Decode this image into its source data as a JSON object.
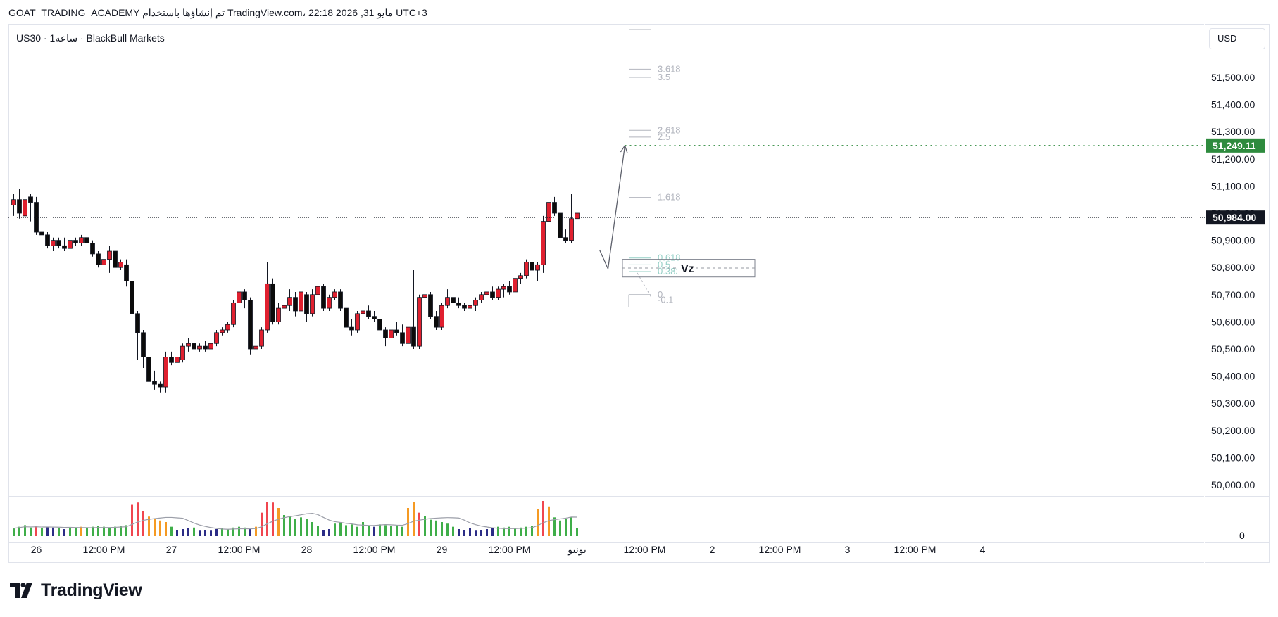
{
  "header": {
    "snapshot_line": "GOAT_TRADING_ACADEMY تم إنشاؤها باستخدام TradingView.com، 22:18 2026 ,31 مايو UTC+3",
    "symbol_line": "US30 · 1ساعة · BlackBull Markets",
    "currency": "USD"
  },
  "brand": {
    "name": "TradingView",
    "logo_icon": "tradingview-logo-icon"
  },
  "colors": {
    "up_candle": "#e0202f",
    "down_candle": "#0b0b0b",
    "target_green": "#2e8b3e",
    "current_price_bg": "#131722",
    "vol_green": "#3fae49",
    "vol_red": "#f0464f",
    "vol_orange": "#f59a23",
    "vol_navy": "#2b2c86",
    "vol_ma": "#9b9ea8",
    "fib_gray": "#b2b5be",
    "fib_teal": "#94cfc6"
  },
  "chart_data": {
    "type": "candlestick",
    "title": "",
    "price_axis": {
      "range": [
        49950,
        51650
      ],
      "ticks": [
        50000,
        50100,
        50200,
        50300,
        50400,
        50500,
        50600,
        50700,
        50800,
        50900,
        51000,
        51100,
        51200,
        51300,
        51400,
        51500
      ],
      "tick_labels": [
        "50,000.00",
        "50,100.00",
        "50,200.00",
        "50,300.00",
        "50,400.00",
        "50,500.00",
        "50,600.00",
        "50,700.00",
        "50,800.00",
        "50,900.00",
        "51,000.00",
        "51,100.00",
        "51,200.00",
        "51,300.00",
        "51,400.00",
        "51,500.00"
      ]
    },
    "time_axis": {
      "labels": [
        "26",
        "12:00 PM",
        "27",
        "12:00 PM",
        "28",
        "12:00 PM",
        "29",
        "12:00 PM",
        "يونيو",
        "12:00 PM",
        "2",
        "12:00 PM",
        "3",
        "12:00 PM",
        "4"
      ],
      "label_bars": [
        4,
        16,
        28,
        40,
        52,
        64,
        76,
        88,
        100,
        112,
        124,
        136,
        148,
        160,
        172
      ]
    },
    "candles": [
      [
        51030,
        51070,
        50990,
        51050
      ],
      [
        51050,
        51090,
        50980,
        51000
      ],
      [
        50990,
        51130,
        50980,
        51050
      ],
      [
        51060,
        51070,
        50970,
        51040
      ],
      [
        51040,
        51060,
        50920,
        50930
      ],
      [
        50930,
        50940,
        50900,
        50920
      ],
      [
        50920,
        50930,
        50870,
        50880
      ],
      [
        50880,
        50910,
        50860,
        50900
      ],
      [
        50900,
        50910,
        50870,
        50880
      ],
      [
        50880,
        50910,
        50860,
        50870
      ],
      [
        50870,
        50920,
        50850,
        50900
      ],
      [
        50900,
        50910,
        50880,
        50890
      ],
      [
        50890,
        50920,
        50880,
        50910
      ],
      [
        50910,
        50950,
        50880,
        50890
      ],
      [
        50890,
        50900,
        50840,
        50850
      ],
      [
        50850,
        50860,
        50800,
        50810
      ],
      [
        50810,
        50840,
        50780,
        50830
      ],
      [
        50830,
        50880,
        50780,
        50860
      ],
      [
        50860,
        50880,
        50770,
        50800
      ],
      [
        50800,
        50830,
        50790,
        50820
      ],
      [
        50810,
        50830,
        50730,
        50750
      ],
      [
        50750,
        50760,
        50610,
        50630
      ],
      [
        50630,
        50640,
        50460,
        50560
      ],
      [
        50560,
        50570,
        50430,
        50470
      ],
      [
        50470,
        50480,
        50370,
        50380
      ],
      [
        50380,
        50420,
        50350,
        50370
      ],
      [
        50370,
        50380,
        50340,
        50360
      ],
      [
        50360,
        50490,
        50340,
        50470
      ],
      [
        50470,
        50490,
        50440,
        50450
      ],
      [
        50450,
        50490,
        50420,
        50470
      ],
      [
        50460,
        50520,
        50450,
        50510
      ],
      [
        50510,
        50540,
        50490,
        50520
      ],
      [
        50520,
        50530,
        50490,
        50500
      ],
      [
        50500,
        50520,
        50490,
        50510
      ],
      [
        50510,
        50530,
        50490,
        50500
      ],
      [
        50500,
        50530,
        50490,
        50520
      ],
      [
        50520,
        50570,
        50510,
        50560
      ],
      [
        50560,
        50580,
        50550,
        50570
      ],
      [
        50570,
        50600,
        50560,
        50590
      ],
      [
        50590,
        50680,
        50580,
        50670
      ],
      [
        50670,
        50720,
        50660,
        50710
      ],
      [
        50710,
        50720,
        50650,
        50680
      ],
      [
        50680,
        50690,
        50480,
        50500
      ],
      [
        50500,
        50530,
        50430,
        50510
      ],
      [
        50510,
        50580,
        50500,
        50570
      ],
      [
        50570,
        50820,
        50560,
        50740
      ],
      [
        50740,
        50760,
        50590,
        50600
      ],
      [
        50600,
        50670,
        50590,
        50650
      ],
      [
        50650,
        50670,
        50620,
        50660
      ],
      [
        50660,
        50720,
        50640,
        50690
      ],
      [
        50690,
        50710,
        50620,
        50640
      ],
      [
        50640,
        50730,
        50630,
        50710
      ],
      [
        50700,
        50710,
        50600,
        50630
      ],
      [
        50630,
        50720,
        50620,
        50700
      ],
      [
        50700,
        50740,
        50690,
        50730
      ],
      [
        50730,
        50740,
        50640,
        50650
      ],
      [
        50650,
        50700,
        50640,
        50690
      ],
      [
        50690,
        50720,
        50680,
        50710
      ],
      [
        50710,
        50720,
        50640,
        50650
      ],
      [
        50650,
        50660,
        50570,
        50580
      ],
      [
        50580,
        50610,
        50550,
        50570
      ],
      [
        50570,
        50640,
        50560,
        50630
      ],
      [
        50630,
        50650,
        50620,
        50640
      ],
      [
        50640,
        50660,
        50610,
        50620
      ],
      [
        50620,
        50640,
        50600,
        50610
      ],
      [
        50610,
        50620,
        50560,
        50570
      ],
      [
        50570,
        50580,
        50510,
        50540
      ],
      [
        50540,
        50580,
        50520,
        50570
      ],
      [
        50570,
        50600,
        50550,
        50560
      ],
      [
        50560,
        50590,
        50510,
        50520
      ],
      [
        50520,
        50600,
        50310,
        50580
      ],
      [
        50580,
        50790,
        50500,
        50510
      ],
      [
        50510,
        50700,
        50500,
        50690
      ],
      [
        50690,
        50710,
        50670,
        50700
      ],
      [
        50700,
        50710,
        50610,
        50620
      ],
      [
        50620,
        50640,
        50570,
        50580
      ],
      [
        50580,
        50670,
        50570,
        50660
      ],
      [
        50660,
        50720,
        50650,
        50690
      ],
      [
        50690,
        50700,
        50660,
        50670
      ],
      [
        50670,
        50690,
        50650,
        50660
      ],
      [
        50660,
        50670,
        50640,
        50650
      ],
      [
        50650,
        50670,
        50630,
        50660
      ],
      [
        50660,
        50690,
        50640,
        50680
      ],
      [
        50680,
        50710,
        50670,
        50700
      ],
      [
        50700,
        50720,
        50690,
        50710
      ],
      [
        50710,
        50730,
        50680,
        50690
      ],
      [
        50690,
        50730,
        50680,
        50720
      ],
      [
        50720,
        50740,
        50690,
        50730
      ],
      [
        50730,
        50750,
        50700,
        50710
      ],
      [
        50710,
        50780,
        50700,
        50760
      ],
      [
        50760,
        50780,
        50740,
        50770
      ],
      [
        50770,
        50830,
        50760,
        50820
      ],
      [
        50820,
        50830,
        50780,
        50790
      ],
      [
        50790,
        50820,
        50750,
        50810
      ],
      [
        50810,
        50990,
        50780,
        50970
      ],
      [
        50970,
        51060,
        50950,
        51040
      ],
      [
        51040,
        51060,
        50990,
        51000
      ],
      [
        51000,
        51010,
        50900,
        50910
      ],
      [
        50910,
        50940,
        50890,
        50900
      ],
      [
        50900,
        51070,
        50890,
        50980
      ],
      [
        50980,
        51020,
        50950,
        51000
      ]
    ],
    "volume": [
      [
        10,
        0
      ],
      [
        12,
        0
      ],
      [
        14,
        0
      ],
      [
        11,
        0
      ],
      [
        13,
        1
      ],
      [
        10,
        0
      ],
      [
        12,
        3
      ],
      [
        11,
        3
      ],
      [
        10,
        0
      ],
      [
        9,
        3
      ],
      [
        11,
        0
      ],
      [
        10,
        0
      ],
      [
        12,
        2
      ],
      [
        11,
        0
      ],
      [
        12,
        0
      ],
      [
        13,
        0
      ],
      [
        12,
        0
      ],
      [
        11,
        0
      ],
      [
        12,
        0
      ],
      [
        13,
        0
      ],
      [
        14,
        0
      ],
      [
        40,
        1
      ],
      [
        43,
        1
      ],
      [
        32,
        1
      ],
      [
        25,
        2
      ],
      [
        22,
        2
      ],
      [
        20,
        2
      ],
      [
        18,
        2
      ],
      [
        12,
        0
      ],
      [
        8,
        3
      ],
      [
        9,
        3
      ],
      [
        10,
        3
      ],
      [
        11,
        0
      ],
      [
        7,
        3
      ],
      [
        8,
        3
      ],
      [
        7,
        3
      ],
      [
        9,
        3
      ],
      [
        10,
        0
      ],
      [
        9,
        0
      ],
      [
        11,
        0
      ],
      [
        12,
        0
      ],
      [
        11,
        0
      ],
      [
        9,
        3
      ],
      [
        12,
        2
      ],
      [
        30,
        1
      ],
      [
        44,
        1
      ],
      [
        43,
        1
      ],
      [
        36,
        2
      ],
      [
        27,
        0
      ],
      [
        26,
        0
      ],
      [
        22,
        0
      ],
      [
        24,
        0
      ],
      [
        22,
        0
      ],
      [
        18,
        0
      ],
      [
        13,
        0
      ],
      [
        8,
        3
      ],
      [
        9,
        3
      ],
      [
        16,
        0
      ],
      [
        18,
        0
      ],
      [
        14,
        0
      ],
      [
        15,
        0
      ],
      [
        12,
        0
      ],
      [
        18,
        0
      ],
      [
        14,
        0
      ],
      [
        12,
        3
      ],
      [
        15,
        0
      ],
      [
        14,
        0
      ],
      [
        13,
        0
      ],
      [
        14,
        0
      ],
      [
        12,
        0
      ],
      [
        36,
        2
      ],
      [
        44,
        2
      ],
      [
        30,
        1
      ],
      [
        26,
        0
      ],
      [
        21,
        0
      ],
      [
        20,
        0
      ],
      [
        18,
        0
      ],
      [
        16,
        0
      ],
      [
        12,
        0
      ],
      [
        9,
        3
      ],
      [
        8,
        3
      ],
      [
        10,
        3
      ],
      [
        7,
        3
      ],
      [
        8,
        3
      ],
      [
        9,
        3
      ],
      [
        10,
        3
      ],
      [
        12,
        0
      ],
      [
        11,
        0
      ],
      [
        12,
        0
      ],
      [
        10,
        0
      ],
      [
        11,
        0
      ],
      [
        12,
        0
      ],
      [
        13,
        0
      ],
      [
        35,
        2
      ],
      [
        45,
        1
      ],
      [
        38,
        2
      ],
      [
        24,
        0
      ],
      [
        20,
        0
      ],
      [
        22,
        0
      ],
      [
        24,
        0
      ],
      [
        10,
        0
      ]
    ],
    "volume_axis_label": "0",
    "current_price": {
      "value": 50984,
      "label": "50,984.00"
    },
    "target_price": {
      "value": 51249.11,
      "label": "51,249.11"
    },
    "fib_levels": [
      {
        "label": "3.618",
        "value": 51530,
        "style": "gray"
      },
      {
        "label": "3.5",
        "value": 51500,
        "style": "gray"
      },
      {
        "label": "2.618",
        "value": 51305,
        "style": "gray"
      },
      {
        "label": "2.5",
        "value": 51280,
        "style": "gray"
      },
      {
        "label": "1.618",
        "value": 51058,
        "style": "gray"
      },
      {
        "label": "0.618",
        "value": 50835,
        "style": "teal"
      },
      {
        "label": "0.5",
        "value": 50810,
        "style": "teal"
      },
      {
        "label": "0.382",
        "value": 50785,
        "style": "teal"
      },
      {
        "label": "0",
        "value": 50700,
        "style": "gray"
      },
      {
        "label": "-0.1",
        "value": 50680,
        "style": "gray"
      }
    ],
    "zone": {
      "label": "Vz",
      "top": 50830,
      "bottom": 50765,
      "mid": 50798
    },
    "projection_path": [
      [
        104,
        50865
      ],
      [
        105.5,
        50795
      ],
      [
        108.5,
        51249
      ]
    ]
  }
}
